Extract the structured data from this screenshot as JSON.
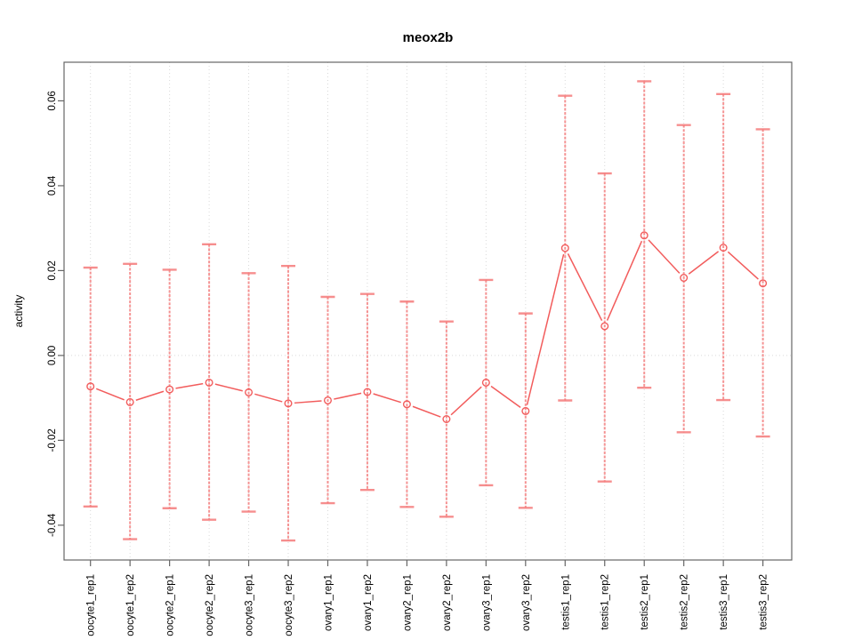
{
  "chart_data": {
    "type": "line",
    "title": "meox2b",
    "ylabel": "activity",
    "xlabel": "",
    "categories": [
      "oocyte1_rep1",
      "oocyte1_rep2",
      "oocyte2_rep1",
      "oocyte2_rep2",
      "oocyte3_rep1",
      "oocyte3_rep2",
      "ovary1_rep1",
      "ovary1_rep2",
      "ovary2_rep1",
      "ovary2_rep2",
      "ovary3_rep1",
      "ovary3_rep2",
      "testis1_rep1",
      "testis1_rep2",
      "testis2_rep1",
      "testis2_rep2",
      "testis3_rep1",
      "testis3_rep2"
    ],
    "series": [
      {
        "name": "activity",
        "values": [
          -0.0073,
          -0.011,
          -0.008,
          -0.0064,
          -0.0087,
          -0.0113,
          -0.0106,
          -0.0086,
          -0.0115,
          -0.015,
          -0.0064,
          -0.0131,
          0.0253,
          0.0069,
          0.0283,
          0.0183,
          0.0254,
          0.017
        ],
        "upper": [
          0.0207,
          0.0216,
          0.0202,
          0.0262,
          0.0194,
          0.0211,
          0.0138,
          0.0145,
          0.0127,
          0.008,
          0.0178,
          0.0099,
          0.0612,
          0.0429,
          0.0646,
          0.0543,
          0.0616,
          0.0533
        ],
        "lower": [
          -0.0356,
          -0.0433,
          -0.036,
          -0.0387,
          -0.0368,
          -0.0436,
          -0.0348,
          -0.0317,
          -0.0357,
          -0.038,
          -0.0306,
          -0.0359,
          -0.0106,
          -0.0297,
          -0.0076,
          -0.0181,
          -0.0105,
          -0.0191
        ]
      }
    ],
    "ylim": [
      -0.0482,
      0.0691
    ],
    "yticks": [
      0.06,
      0.04,
      0.02,
      0,
      -0.02,
      -0.04
    ],
    "ytick_labels": [
      "0.06",
      "0.04",
      "0.02",
      "0.00",
      "-0.02",
      "-0.04"
    ],
    "grid": {
      "vertical_per_category": true,
      "horizontal_zero_line": true,
      "style": "dotted"
    },
    "legend": "none",
    "marker": "open-circle",
    "error_bars": true,
    "colors": {
      "series": "#f25c5c",
      "error_bar": "#f47a7a",
      "grid": "#d9d9d9",
      "box": "#666666",
      "text": "#000000",
      "background": "#ffffff"
    }
  }
}
